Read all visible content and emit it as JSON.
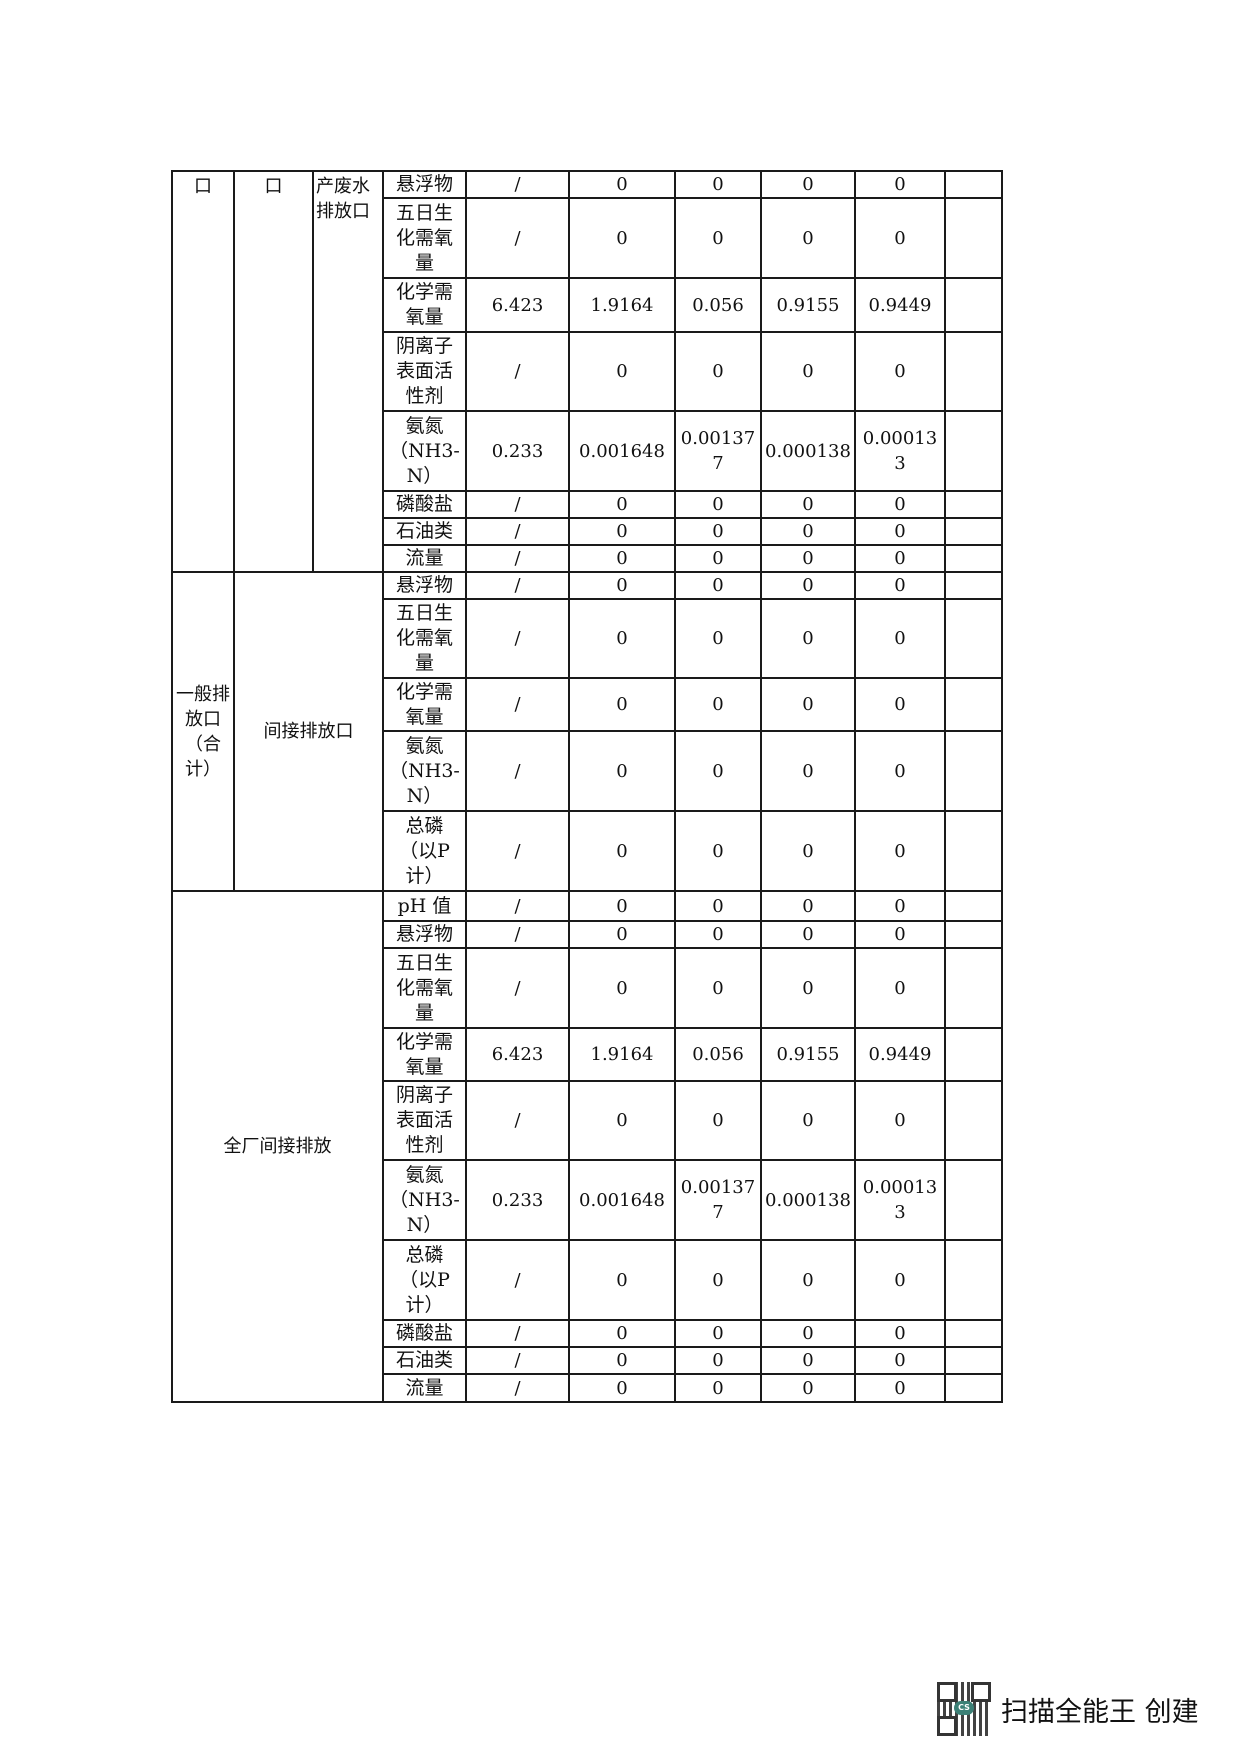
{
  "table": {
    "sections": [
      {
        "labels": [
          "口",
          "口",
          "产废水排放口"
        ],
        "rows": [
          [
            "悬浮物",
            "/",
            "0",
            "0",
            "0",
            "0",
            ""
          ],
          [
            "五日生化需氧量",
            "/",
            "0",
            "0",
            "0",
            "0",
            ""
          ],
          [
            "化学需氧量",
            "6.423",
            "1.9164",
            "0.056",
            "0.9155",
            "0.9449",
            ""
          ],
          [
            "阴离子表面活性剂",
            "/",
            "0",
            "0",
            "0",
            "0",
            ""
          ],
          [
            "氨氮（NH3-N）",
            "0.233",
            "0.001648",
            "0.001377",
            "0.000138",
            "0.000133",
            ""
          ],
          [
            "磷酸盐",
            "/",
            "0",
            "0",
            "0",
            "0",
            ""
          ],
          [
            "石油类",
            "/",
            "0",
            "0",
            "0",
            "0",
            ""
          ],
          [
            "流量",
            "/",
            "0",
            "0",
            "0",
            "0",
            ""
          ]
        ]
      },
      {
        "labels": [
          "一般排放口（合计）",
          "间接排放口"
        ],
        "rows": [
          [
            "悬浮物",
            "/",
            "0",
            "0",
            "0",
            "0",
            ""
          ],
          [
            "五日生化需氧量",
            "/",
            "0",
            "0",
            "0",
            "0",
            ""
          ],
          [
            "化学需氧量",
            "/",
            "0",
            "0",
            "0",
            "0",
            ""
          ],
          [
            "氨氮（NH3-N）",
            "/",
            "0",
            "0",
            "0",
            "0",
            ""
          ],
          [
            "总磷（以P计）",
            "/",
            "0",
            "0",
            "0",
            "0",
            ""
          ]
        ]
      },
      {
        "labels": [
          "全厂间接排放"
        ],
        "rows": [
          [
            "pH 值",
            "/",
            "0",
            "0",
            "0",
            "0",
            ""
          ],
          [
            "悬浮物",
            "/",
            "0",
            "0",
            "0",
            "0",
            ""
          ],
          [
            "五日生化需氧量",
            "/",
            "0",
            "0",
            "0",
            "0",
            ""
          ],
          [
            "化学需氧量",
            "6.423",
            "1.9164",
            "0.056",
            "0.9155",
            "0.9449",
            ""
          ],
          [
            "阴离子表面活性剂",
            "/",
            "0",
            "0",
            "0",
            "0",
            ""
          ],
          [
            "氨氮（NH3-N）",
            "0.233",
            "0.001648",
            "0.001377",
            "0.000138",
            "0.000133",
            ""
          ],
          [
            "总磷（以P计）",
            "/",
            "0",
            "0",
            "0",
            "0",
            ""
          ],
          [
            "磷酸盐",
            "/",
            "0",
            "0",
            "0",
            "0",
            ""
          ],
          [
            "石油类",
            "/",
            "0",
            "0",
            "0",
            "0",
            ""
          ],
          [
            "流量",
            "/",
            "0",
            "0",
            "0",
            "0",
            ""
          ]
        ]
      }
    ]
  },
  "footer": {
    "watermark_text": "扫描全能王 创建",
    "logo_text": "CS",
    "logo_color": "#1b6b5f"
  }
}
